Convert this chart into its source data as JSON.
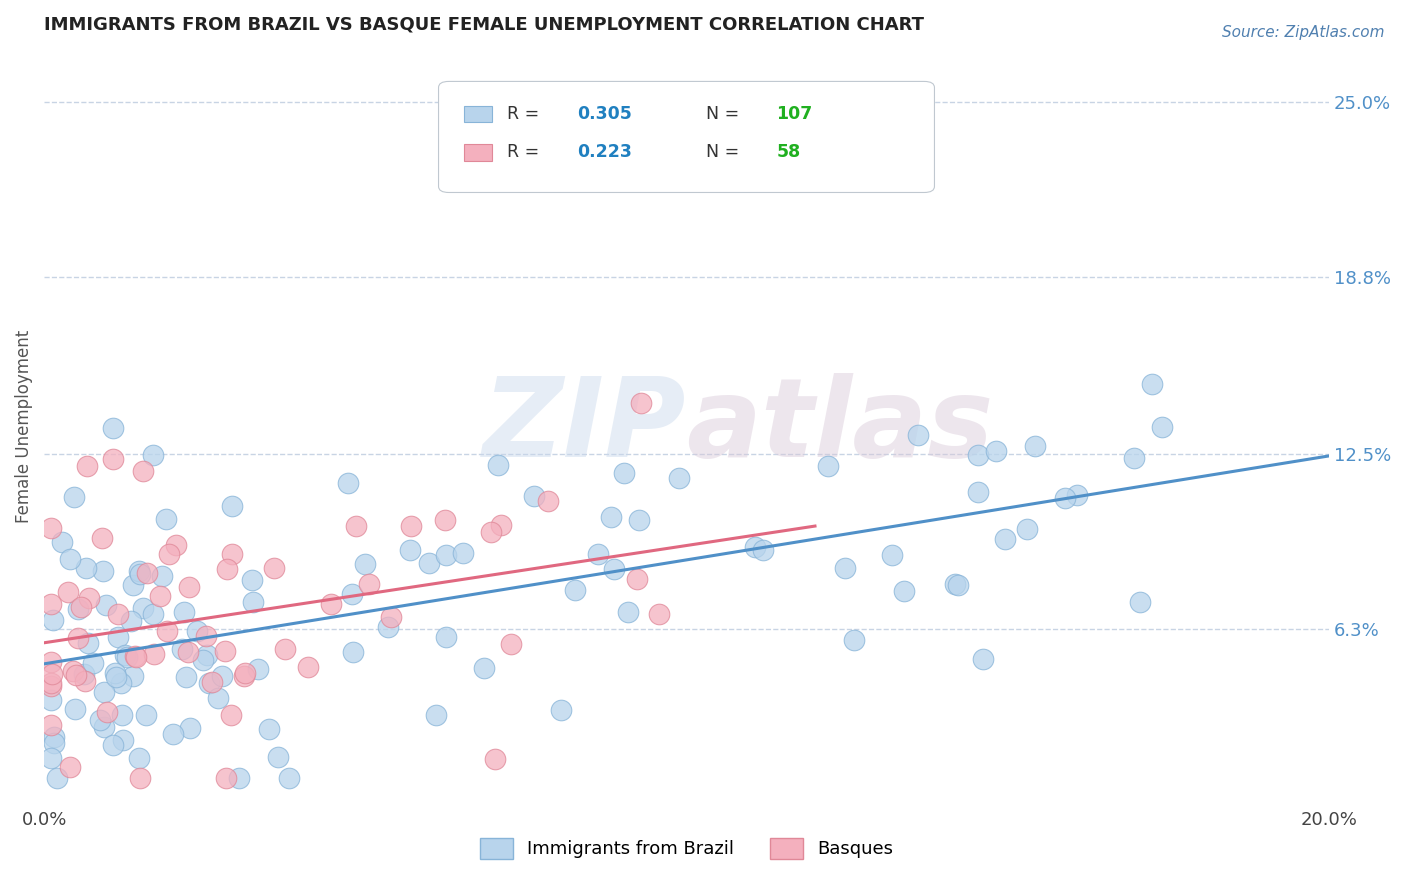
{
  "title": "IMMIGRANTS FROM BRAZIL VS BASQUE FEMALE UNEMPLOYMENT CORRELATION CHART",
  "source": "Source: ZipAtlas.com",
  "ylabel": "Female Unemployment",
  "xlim": [
    0.0,
    0.2
  ],
  "ylim": [
    0.0,
    0.27
  ],
  "ytick_labels_right": [
    "6.3%",
    "12.5%",
    "18.8%",
    "25.0%"
  ],
  "ytick_values_right": [
    0.063,
    0.125,
    0.188,
    0.25
  ],
  "series1_label": "Immigrants from Brazil",
  "series1_color": "#b8d4ec",
  "series1_edge_color": "#88b4d8",
  "series1_R": 0.305,
  "series1_N": 107,
  "series1_line_color": "#5090c8",
  "series2_label": "Basques",
  "series2_color": "#f4b0be",
  "series2_edge_color": "#e08898",
  "series2_R": 0.223,
  "series2_N": 58,
  "series2_line_color": "#e06880",
  "watermark_zip": "ZIP",
  "watermark_atlas": "atlas",
  "background_color": "#ffffff",
  "grid_color": "#c8d4e4",
  "title_color": "#222222",
  "source_color": "#5080b0",
  "legend_R_color": "#2080c0",
  "legend_N_color": "#20b020"
}
